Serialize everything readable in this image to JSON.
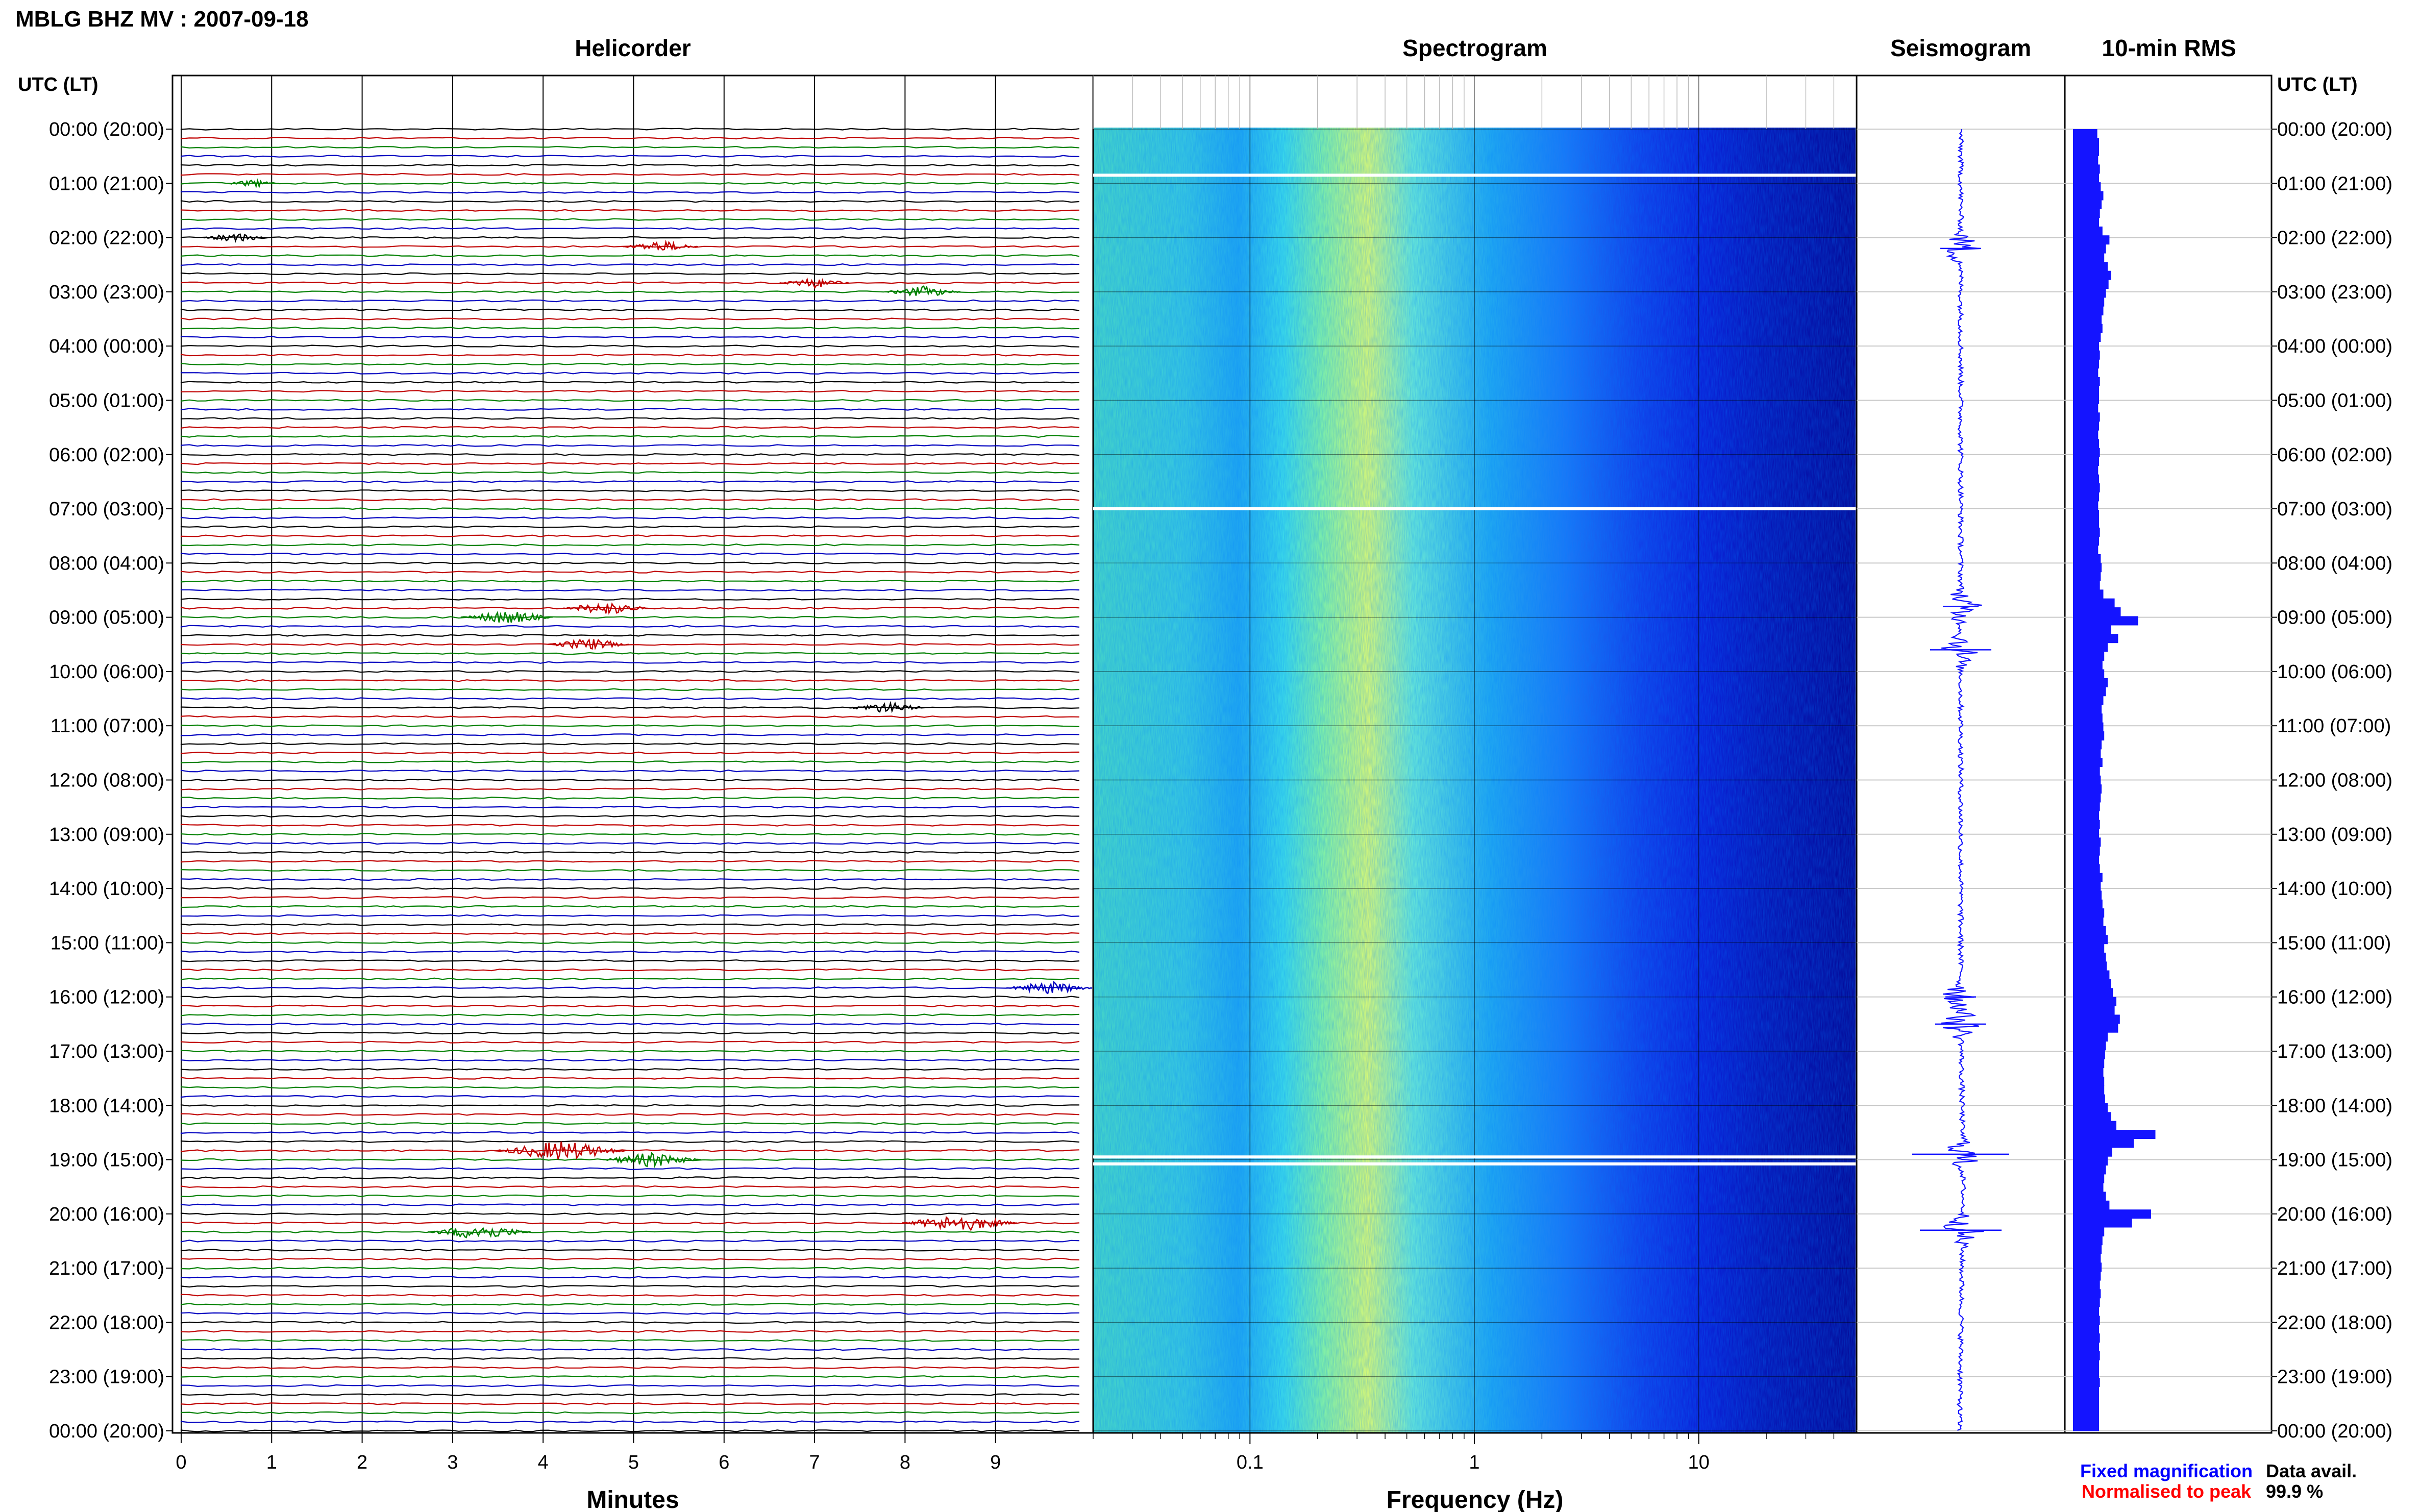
{
  "header": {
    "title": "MBLG BHZ MV : 2007-09-18"
  },
  "panels": {
    "helicorder": "Helicorder",
    "spectrogram": "Spectrogram",
    "seismogram": "Seismogram",
    "rms": "10-min RMS"
  },
  "time_axis": {
    "header": "UTC (LT)",
    "labels": [
      "00:00 (20:00)",
      "01:00 (21:00)",
      "02:00 (22:00)",
      "03:00 (23:00)",
      "04:00 (00:00)",
      "05:00 (01:00)",
      "06:00 (02:00)",
      "07:00 (03:00)",
      "08:00 (04:00)",
      "09:00 (05:00)",
      "10:00 (06:00)",
      "11:00 (07:00)",
      "12:00 (08:00)",
      "13:00 (09:00)",
      "14:00 (10:00)",
      "15:00 (11:00)",
      "16:00 (12:00)",
      "17:00 (13:00)",
      "18:00 (14:00)",
      "19:00 (15:00)",
      "20:00 (16:00)",
      "21:00 (17:00)",
      "22:00 (18:00)",
      "23:00 (19:00)",
      "00:00 (20:00)"
    ]
  },
  "helicorder_axis": {
    "label": "Minutes",
    "ticks": [
      "0",
      "1",
      "2",
      "3",
      "4",
      "5",
      "6",
      "7",
      "8",
      "9"
    ],
    "trace_colors": [
      "#000000",
      "#c00000",
      "#008000",
      "#0000c0"
    ]
  },
  "spectrogram_axis": {
    "label": "Frequency (Hz)",
    "ticks": [
      "0.1",
      "1",
      "10"
    ],
    "scale": "log",
    "colormap": [
      "#000080",
      "#0000ff",
      "#00a0ff",
      "#00ffff",
      "#80ff80",
      "#ffff00"
    ]
  },
  "legend": {
    "fixed": "Fixed magnification",
    "fixed_color": "#0000ff",
    "normalised": "Normalised to peak",
    "normalised_color": "#ff0000",
    "data_avail_label": "Data avail.",
    "data_avail_value": "99.9 %"
  },
  "chart_data": {
    "type": "heatmap",
    "station": "MBLG BHZ MV",
    "date": "2007-09-18",
    "helicorder": {
      "rows_per_hour": 6,
      "minutes_per_row": 10,
      "events": [
        {
          "hour": 1.0,
          "minute": 0.8,
          "amplitude": 0.4
        },
        {
          "hour": 2.0,
          "minute": 0.6,
          "amplitude": 0.6
        },
        {
          "hour": 2.1,
          "minute": 5.3,
          "amplitude": 0.8
        },
        {
          "hour": 2.8,
          "minute": 7.0,
          "amplitude": 0.7
        },
        {
          "hour": 3.0,
          "minute": 8.2,
          "amplitude": 0.8
        },
        {
          "hour": 8.8,
          "minute": 4.7,
          "amplitude": 1.0
        },
        {
          "hour": 9.0,
          "minute": 3.6,
          "amplitude": 1.1
        },
        {
          "hour": 9.5,
          "minute": 4.5,
          "amplitude": 0.9
        },
        {
          "hour": 10.7,
          "minute": 7.8,
          "amplitude": 0.8
        },
        {
          "hour": 15.9,
          "minute": 9.6,
          "amplitude": 1.0
        },
        {
          "hour": 18.8,
          "minute": 4.2,
          "amplitude": 1.8
        },
        {
          "hour": 19.0,
          "minute": 5.2,
          "amplitude": 1.2
        },
        {
          "hour": 20.1,
          "minute": 8.6,
          "amplitude": 1.5
        },
        {
          "hour": 20.3,
          "minute": 3.3,
          "amplitude": 1.3
        }
      ]
    },
    "spectrogram": {
      "freq_range_hz": [
        0.02,
        50
      ],
      "peak_band_hz": [
        0.2,
        0.4
      ],
      "gaps_hours": [
        0.85,
        7.0,
        18.95
      ]
    },
    "seismogram": {
      "spikes_hours": [
        2.2,
        8.8,
        9.6,
        16.0,
        16.5,
        18.9,
        20.3
      ]
    },
    "rms_10min": {
      "unit": "relative",
      "values": [
        0.28,
        0.3,
        0.3,
        0.29,
        0.31,
        0.3,
        0.32,
        0.35,
        0.33,
        0.31,
        0.3,
        0.34,
        0.42,
        0.38,
        0.36,
        0.4,
        0.44,
        0.41,
        0.38,
        0.36,
        0.35,
        0.33,
        0.34,
        0.32,
        0.3,
        0.31,
        0.3,
        0.29,
        0.31,
        0.3,
        0.3,
        0.29,
        0.31,
        0.3,
        0.29,
        0.3,
        0.31,
        0.3,
        0.29,
        0.3,
        0.31,
        0.3,
        0.29,
        0.3,
        0.3,
        0.31,
        0.3,
        0.29,
        0.32,
        0.33,
        0.32,
        0.31,
        0.35,
        0.48,
        0.55,
        0.75,
        0.44,
        0.52,
        0.4,
        0.36,
        0.34,
        0.36,
        0.4,
        0.38,
        0.35,
        0.33,
        0.34,
        0.35,
        0.36,
        0.33,
        0.32,
        0.34,
        0.31,
        0.32,
        0.33,
        0.32,
        0.31,
        0.3,
        0.31,
        0.3,
        0.32,
        0.31,
        0.3,
        0.31,
        0.34,
        0.32,
        0.33,
        0.34,
        0.36,
        0.35,
        0.38,
        0.4,
        0.36,
        0.38,
        0.39,
        0.42,
        0.44,
        0.46,
        0.5,
        0.48,
        0.54,
        0.52,
        0.4,
        0.38,
        0.37,
        0.36,
        0.35,
        0.36,
        0.36,
        0.37,
        0.4,
        0.44,
        0.5,
        0.95,
        0.7,
        0.45,
        0.4,
        0.38,
        0.36,
        0.35,
        0.38,
        0.42,
        0.9,
        0.68,
        0.36,
        0.34,
        0.33,
        0.32,
        0.33,
        0.32,
        0.31,
        0.32,
        0.31,
        0.3,
        0.31,
        0.3,
        0.31,
        0.3,
        0.31,
        0.3,
        0.3,
        0.31,
        0.3,
        0.3,
        0.3,
        0.3,
        0.3
      ]
    },
    "data_availability_percent": 99.9
  }
}
